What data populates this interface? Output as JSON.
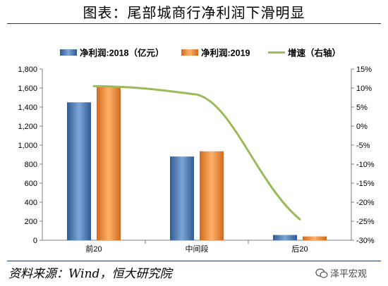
{
  "title": "图表：尾部城商行净利润下滑明显",
  "source": "资料来源：Wind，恒大研究院",
  "watermark": "泽平宏观",
  "chart_data": {
    "type": "bar",
    "categories": [
      "前20",
      "中间段",
      "后20"
    ],
    "series": [
      {
        "name": "净利润:2018（亿元）",
        "type": "bar",
        "axis": "left",
        "color": "#4f81bd",
        "values": [
          1450,
          880,
          55
        ]
      },
      {
        "name": "净利润:2019",
        "type": "bar",
        "axis": "left",
        "color": "#f79646",
        "values": [
          1610,
          935,
          40
        ]
      },
      {
        "name": "增速（右轴）",
        "type": "line",
        "axis": "right",
        "color": "#9bbb59",
        "values": [
          10.5,
          8.3,
          -24.5
        ]
      }
    ],
    "y_left": {
      "min": 0,
      "max": 1800,
      "step": 200,
      "ticks": [
        "0",
        "200",
        "400",
        "600",
        "800",
        "1,000",
        "1,200",
        "1,400",
        "1,600",
        "1,800"
      ]
    },
    "y_right": {
      "min": -30,
      "max": 15,
      "step": 5,
      "ticks": [
        "-30%",
        "-25%",
        "-20%",
        "-15%",
        "-10%",
        "-5%",
        "0%",
        "5%",
        "10%",
        "15%"
      ]
    },
    "legend_position": "top",
    "grid": false
  }
}
